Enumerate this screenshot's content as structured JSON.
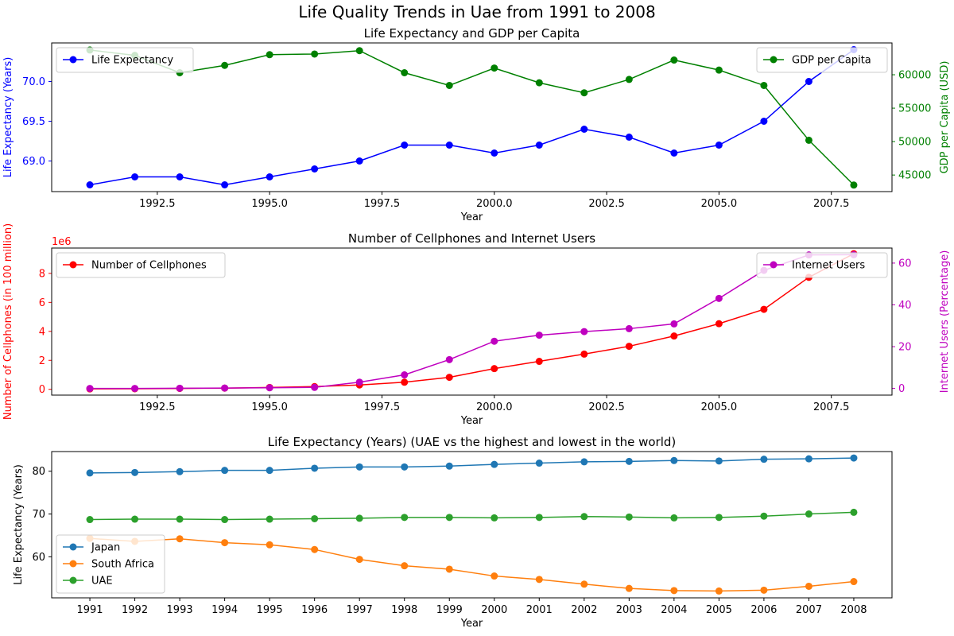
{
  "figure": {
    "title": "Life Quality Trends in Uae from 1991 to 2008"
  },
  "colors": {
    "blue": "#0000ff",
    "green": "#008000",
    "red": "#ff0000",
    "magenta": "#bf00bf",
    "tab_blue": "#1f77b4",
    "tab_orange": "#ff7f0e",
    "tab_green": "#2ca02c"
  },
  "chart_data": [
    {
      "type": "line",
      "title": "Life Expectancy and GDP per Capita",
      "xlabel": "Year",
      "ylabel": "Life Expectancy (Years)",
      "y2label": "GDP per Capita (USD)",
      "x": [
        1991,
        1992,
        1993,
        1994,
        1995,
        1996,
        1997,
        1998,
        1999,
        2000,
        2001,
        2002,
        2003,
        2004,
        2005,
        2006,
        2007,
        2008
      ],
      "xlim": [
        1990.15,
        2008.85
      ],
      "xticks": [
        1992.5,
        1995.0,
        1997.5,
        2000.0,
        2002.5,
        2005.0,
        2007.5
      ],
      "xtick_labels": [
        "1992.5",
        "1995.0",
        "1997.5",
        "2000.0",
        "2002.5",
        "2005.0",
        "2007.5"
      ],
      "ylim": [
        68.615,
        70.485
      ],
      "yticks": [
        69.0,
        69.5,
        70.0
      ],
      "ytick_labels": [
        "69.0",
        "69.5",
        "70.0"
      ],
      "y2lim": [
        42520,
        64760
      ],
      "y2ticks": [
        45000,
        50000,
        55000,
        60000
      ],
      "y2tick_labels": [
        "45000",
        "50000",
        "55000",
        "60000"
      ],
      "grid": false,
      "series": [
        {
          "name": "Life Expectancy",
          "axis": "left",
          "color": "#0000ff",
          "legend": "top-left",
          "values": [
            68.7,
            68.8,
            68.8,
            68.7,
            68.8,
            68.9,
            69.0,
            69.2,
            69.2,
            69.1,
            69.2,
            69.4,
            69.3,
            69.1,
            69.2,
            69.5,
            70.0,
            70.4
          ]
        },
        {
          "name": "GDP per Capita",
          "axis": "right",
          "color": "#008000",
          "legend": "top-right",
          "values": [
            63700,
            62900,
            60300,
            61400,
            63000,
            63100,
            63600,
            60300,
            58400,
            61000,
            58800,
            57300,
            59300,
            62200,
            60700,
            58400,
            50200,
            43500
          ]
        }
      ]
    },
    {
      "type": "line",
      "title": "Number of Cellphones and Internet Users",
      "xlabel": "Year",
      "ylabel": "Number of Cellphones (in 100 million)",
      "y2label": "Internet Users (Percentage)",
      "offset_text": "1e6",
      "x": [
        1991,
        1992,
        1993,
        1994,
        1995,
        1996,
        1997,
        1998,
        1999,
        2000,
        2001,
        2002,
        2003,
        2004,
        2005,
        2006,
        2007,
        2008
      ],
      "xlim": [
        1990.15,
        2008.85
      ],
      "xticks": [
        1992.5,
        1995.0,
        1997.5,
        2000.0,
        2002.5,
        2005.0,
        2007.5
      ],
      "xtick_labels": [
        "1992.5",
        "1995.0",
        "1997.5",
        "2000.0",
        "2002.5",
        "2005.0",
        "2007.5"
      ],
      "ylim": [
        -0.4,
        9.75
      ],
      "yticks": [
        0,
        2,
        4,
        6,
        8
      ],
      "ytick_labels": [
        "0",
        "2",
        "4",
        "6",
        "8"
      ],
      "y2lim": [
        -3.2,
        67.2
      ],
      "y2ticks": [
        0,
        20,
        40,
        60
      ],
      "y2tick_labels": [
        "0",
        "20",
        "40",
        "60"
      ],
      "grid": false,
      "series": [
        {
          "name": "Number of Cellphones",
          "axis": "left",
          "color": "#ff0000",
          "legend": "top-left",
          "values": [
            0.03,
            0.04,
            0.06,
            0.08,
            0.13,
            0.19,
            0.3,
            0.49,
            0.83,
            1.43,
            1.93,
            2.43,
            2.97,
            3.68,
            4.53,
            5.52,
            7.73,
            9.36
          ]
        },
        {
          "name": "Internet Users",
          "axis": "right",
          "color": "#bf00bf",
          "legend": "top-right",
          "values": [
            0,
            0,
            0.1,
            0.2,
            0.3,
            0.5,
            3,
            6.5,
            13.8,
            22.6,
            25.5,
            27.2,
            28.6,
            30.9,
            43.1,
            56.5,
            63.9,
            64
          ]
        }
      ]
    },
    {
      "type": "line",
      "title": "Life Expectancy (Years) (UAE vs the highest and lowest in the world)",
      "xlabel": "Year",
      "ylabel": "Life Expectancy (Years)",
      "x": [
        1991,
        1992,
        1993,
        1994,
        1995,
        1996,
        1997,
        1998,
        1999,
        2000,
        2001,
        2002,
        2003,
        2004,
        2005,
        2006,
        2007,
        2008
      ],
      "xlim": [
        1990.15,
        2008.85
      ],
      "xtick_labels": [
        "1991",
        "1992",
        "1993",
        "1994",
        "1995",
        "1996",
        "1997",
        "1998",
        "1999",
        "2000",
        "2001",
        "2002",
        "2003",
        "2004",
        "2005",
        "2006",
        "2007",
        "2008"
      ],
      "ylim": [
        50.4,
        84.6
      ],
      "yticks": [
        60,
        70,
        80
      ],
      "ytick_labels": [
        "60",
        "70",
        "80"
      ],
      "grid": false,
      "legend_position": "bottom-left",
      "series": [
        {
          "name": "Japan",
          "color": "#1f77b4",
          "values": [
            79.6,
            79.7,
            79.9,
            80.2,
            80.2,
            80.7,
            81.0,
            81.0,
            81.2,
            81.6,
            81.9,
            82.2,
            82.3,
            82.5,
            82.4,
            82.8,
            82.9,
            83.1
          ]
        },
        {
          "name": "South Africa",
          "color": "#ff7f0e",
          "values": [
            64.3,
            63.6,
            64.2,
            63.3,
            62.8,
            61.7,
            59.4,
            57.9,
            57.1,
            55.5,
            54.7,
            53.6,
            52.6,
            52.1,
            52.0,
            52.2,
            53.1,
            54.2
          ]
        },
        {
          "name": "UAE",
          "color": "#2ca02c",
          "values": [
            68.7,
            68.8,
            68.8,
            68.7,
            68.8,
            68.9,
            69.0,
            69.2,
            69.2,
            69.1,
            69.2,
            69.4,
            69.3,
            69.1,
            69.2,
            69.5,
            70.0,
            70.4
          ]
        }
      ]
    }
  ]
}
